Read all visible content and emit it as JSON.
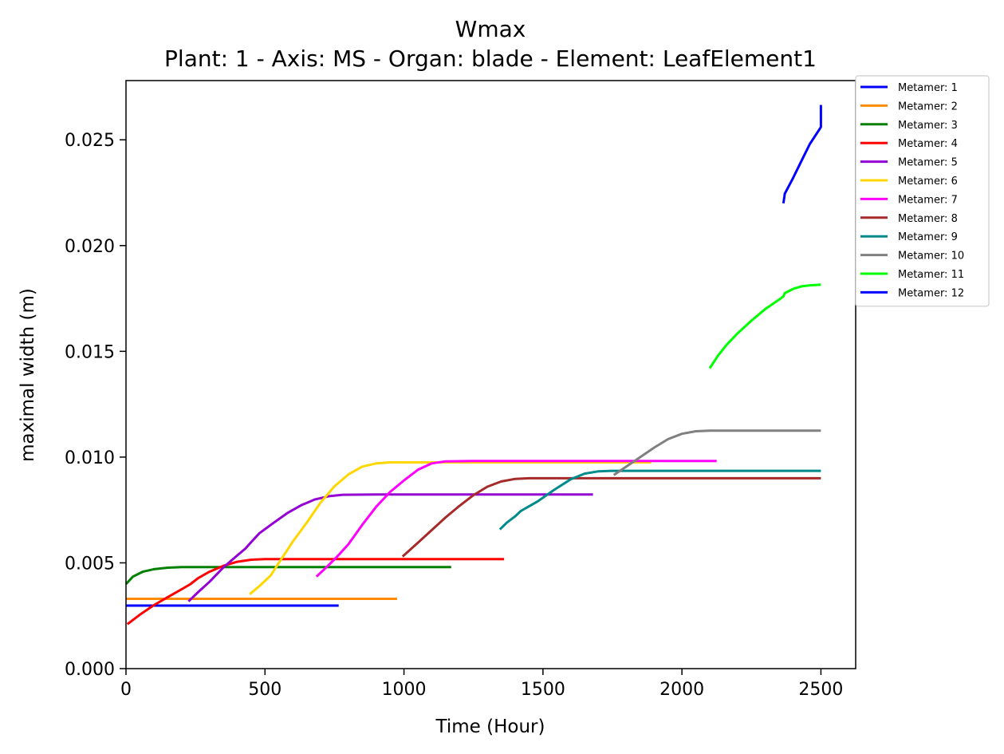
{
  "chart_data": {
    "type": "line",
    "title": "Wmax",
    "subtitle": "Plant: 1 - Axis: MS - Organ: blade - Element: LeafElement1",
    "xlabel": "Time (Hour)",
    "ylabel": "maximal width (m)",
    "xlim": [
      0,
      2625
    ],
    "ylim": [
      0,
      0.0278
    ],
    "xticks": [
      0,
      500,
      1000,
      1500,
      2000,
      2500
    ],
    "yticks": [
      0.0,
      0.005,
      0.01,
      0.015,
      0.02,
      0.025
    ],
    "xtick_labels": [
      "0",
      "500",
      "1000",
      "1500",
      "2000",
      "2500"
    ],
    "ytick_labels": [
      "0.000",
      "0.005",
      "0.010",
      "0.015",
      "0.020",
      "0.025"
    ],
    "grid": false,
    "legend_position": "outside-top-right",
    "series": [
      {
        "name": "Metamer: 1",
        "color": "#0000ff",
        "points": [
          [
            0,
            0.00298
          ],
          [
            765,
            0.00298
          ]
        ]
      },
      {
        "name": "Metamer: 2",
        "color": "#ff8c00",
        "points": [
          [
            0,
            0.0033
          ],
          [
            975,
            0.0033
          ]
        ]
      },
      {
        "name": "Metamer: 3",
        "color": "#008000",
        "points": [
          [
            0,
            0.004
          ],
          [
            25,
            0.00435
          ],
          [
            60,
            0.00458
          ],
          [
            100,
            0.0047
          ],
          [
            150,
            0.00477
          ],
          [
            200,
            0.0048
          ],
          [
            400,
            0.0048
          ],
          [
            1170,
            0.0048
          ]
        ]
      },
      {
        "name": "Metamer: 4",
        "color": "#ff0000",
        "points": [
          [
            5,
            0.0021
          ],
          [
            50,
            0.00255
          ],
          [
            100,
            0.003
          ],
          [
            150,
            0.00338
          ],
          [
            200,
            0.00375
          ],
          [
            230,
            0.00398
          ],
          [
            260,
            0.00428
          ],
          [
            300,
            0.00458
          ],
          [
            350,
            0.00486
          ],
          [
            400,
            0.00505
          ],
          [
            450,
            0.00515
          ],
          [
            500,
            0.00518
          ],
          [
            700,
            0.00518
          ],
          [
            1360,
            0.00518
          ]
        ]
      },
      {
        "name": "Metamer: 5",
        "color": "#9400d3",
        "points": [
          [
            225,
            0.00318
          ],
          [
            260,
            0.00362
          ],
          [
            300,
            0.0041
          ],
          [
            350,
            0.00478
          ],
          [
            400,
            0.00535
          ],
          [
            430,
            0.00568
          ],
          [
            450,
            0.00598
          ],
          [
            480,
            0.0064
          ],
          [
            530,
            0.00688
          ],
          [
            580,
            0.00735
          ],
          [
            630,
            0.00772
          ],
          [
            680,
            0.008
          ],
          [
            730,
            0.00815
          ],
          [
            780,
            0.00822
          ],
          [
            900,
            0.00823
          ],
          [
            1680,
            0.00823
          ]
        ]
      },
      {
        "name": "Metamer: 6",
        "color": "#ffd700",
        "points": [
          [
            445,
            0.00352
          ],
          [
            480,
            0.0039
          ],
          [
            520,
            0.0044
          ],
          [
            560,
            0.0052
          ],
          [
            600,
            0.006
          ],
          [
            650,
            0.0069
          ],
          [
            700,
            0.00785
          ],
          [
            750,
            0.00862
          ],
          [
            800,
            0.00918
          ],
          [
            850,
            0.00955
          ],
          [
            900,
            0.0097
          ],
          [
            950,
            0.00975
          ],
          [
            1100,
            0.00975
          ],
          [
            1890,
            0.00975
          ]
        ]
      },
      {
        "name": "Metamer: 7",
        "color": "#ff00ff",
        "points": [
          [
            685,
            0.00435
          ],
          [
            720,
            0.00478
          ],
          [
            760,
            0.0053
          ],
          [
            800,
            0.00588
          ],
          [
            850,
            0.0068
          ],
          [
            900,
            0.00765
          ],
          [
            950,
            0.00835
          ],
          [
            1000,
            0.0089
          ],
          [
            1050,
            0.0094
          ],
          [
            1100,
            0.0097
          ],
          [
            1150,
            0.0098
          ],
          [
            1250,
            0.00982
          ],
          [
            2125,
            0.00982
          ]
        ]
      },
      {
        "name": "Metamer: 8",
        "color": "#a52a2a",
        "points": [
          [
            995,
            0.0053
          ],
          [
            1050,
            0.00595
          ],
          [
            1100,
            0.00655
          ],
          [
            1150,
            0.00715
          ],
          [
            1200,
            0.0077
          ],
          [
            1250,
            0.0082
          ],
          [
            1300,
            0.0086
          ],
          [
            1350,
            0.00885
          ],
          [
            1400,
            0.00897
          ],
          [
            1450,
            0.009
          ],
          [
            1600,
            0.009
          ],
          [
            2500,
            0.009
          ]
        ]
      },
      {
        "name": "Metamer: 9",
        "color": "#008b8b",
        "points": [
          [
            1345,
            0.00658
          ],
          [
            1370,
            0.0069
          ],
          [
            1400,
            0.0072
          ],
          [
            1420,
            0.00745
          ],
          [
            1480,
            0.0079
          ],
          [
            1540,
            0.00845
          ],
          [
            1600,
            0.00895
          ],
          [
            1650,
            0.00922
          ],
          [
            1700,
            0.00933
          ],
          [
            1750,
            0.00935
          ],
          [
            1900,
            0.00935
          ],
          [
            2500,
            0.00935
          ]
        ]
      },
      {
        "name": "Metamer: 10",
        "color": "#808080",
        "points": [
          [
            1755,
            0.00915
          ],
          [
            1800,
            0.00955
          ],
          [
            1850,
            0.01
          ],
          [
            1900,
            0.01045
          ],
          [
            1950,
            0.01085
          ],
          [
            2000,
            0.0111
          ],
          [
            2050,
            0.01122
          ],
          [
            2100,
            0.01125
          ],
          [
            2200,
            0.01125
          ],
          [
            2500,
            0.01125
          ]
        ]
      },
      {
        "name": "Metamer: 11",
        "color": "#00ff00",
        "points": [
          [
            2100,
            0.0142
          ],
          [
            2130,
            0.0148
          ],
          [
            2160,
            0.0153
          ],
          [
            2200,
            0.01585
          ],
          [
            2250,
            0.01645
          ],
          [
            2300,
            0.017
          ],
          [
            2350,
            0.01745
          ],
          [
            2365,
            0.0176
          ],
          [
            2370,
            0.01775
          ],
          [
            2400,
            0.01795
          ],
          [
            2430,
            0.01807
          ],
          [
            2460,
            0.01812
          ],
          [
            2500,
            0.01815
          ]
        ]
      },
      {
        "name": "Metamer: 12",
        "color": "#0000ff",
        "points": [
          [
            2365,
            0.022
          ],
          [
            2370,
            0.02245
          ],
          [
            2400,
            0.0232
          ],
          [
            2430,
            0.024
          ],
          [
            2460,
            0.0248
          ],
          [
            2500,
            0.0256
          ],
          [
            2500,
            0.02665
          ]
        ]
      }
    ]
  }
}
